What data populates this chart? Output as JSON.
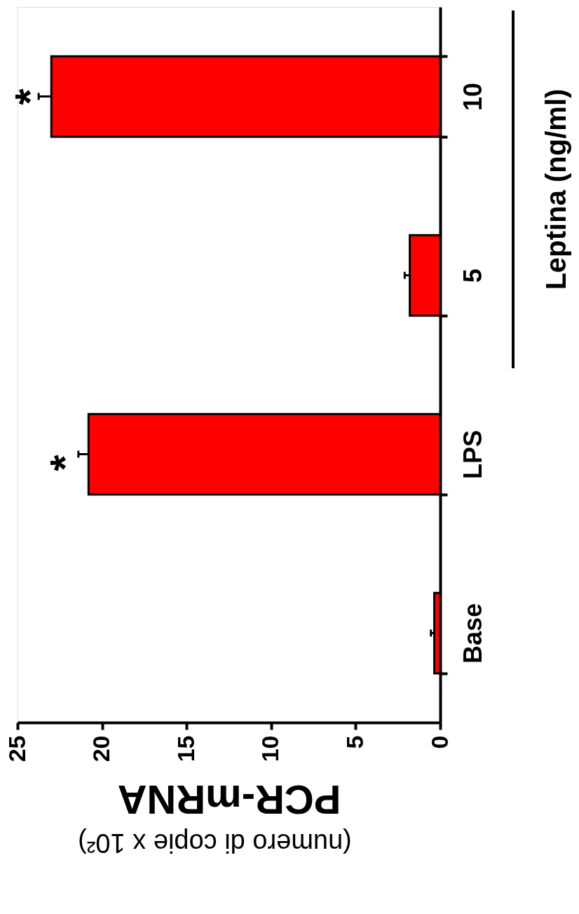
{
  "chart_data": {
    "type": "bar",
    "orientation": "horizontal",
    "categories": [
      "10",
      "5",
      "LPS",
      "Base"
    ],
    "values": [
      23.0,
      1.8,
      20.8,
      0.35
    ],
    "errors": [
      0.75,
      0.3,
      0.6,
      0.2
    ],
    "color": "#ff0000",
    "xlim": [
      25,
      0
    ],
    "xticks": [
      0,
      5,
      10,
      15,
      20,
      25
    ],
    "xlabel": "PCR-mRNA",
    "annotations": [
      "(numero di copie x 10²)",
      "*",
      "*",
      "Leptina (ng/ml)"
    ],
    "grid": false
  }
}
